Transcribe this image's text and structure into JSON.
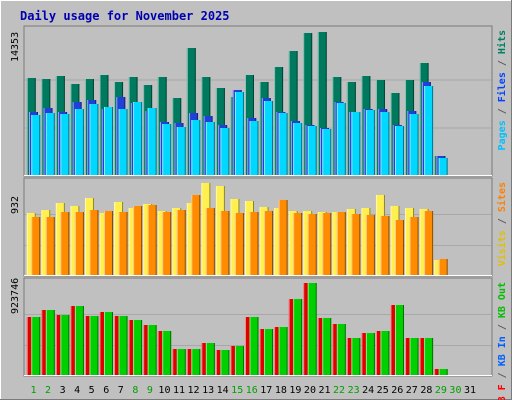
{
  "chart_data": {
    "type": "bar",
    "title": "Daily usage for November 2025",
    "categories": [
      "1",
      "2",
      "3",
      "4",
      "5",
      "6",
      "7",
      "8",
      "9",
      "10",
      "11",
      "12",
      "13",
      "14",
      "15",
      "16",
      "17",
      "18",
      "19",
      "20",
      "21",
      "22",
      "23",
      "24",
      "25",
      "26",
      "27",
      "28",
      "29",
      "30",
      "31"
    ],
    "weekend_days": [
      "1",
      "2",
      "8",
      "9",
      "15",
      "16",
      "22",
      "23",
      "29",
      "30"
    ],
    "panels": [
      {
        "id": "hits",
        "ymax_label": "14353",
        "ymax": 14353,
        "ylabel_parts": [
          {
            "text": "Pages",
            "color": "#00c0ff"
          },
          {
            "text": " / ",
            "color": "#606060"
          },
          {
            "text": "Files",
            "color": "#0044ff"
          },
          {
            "text": " / ",
            "color": "#606060"
          },
          {
            "text": "Hits",
            "color": "#008060"
          }
        ],
        "series": [
          {
            "name": "Hits",
            "color": "#007a5e",
            "values": [
              9700,
              9600,
              9900,
              9100,
              9600,
              10000,
              9300,
              9800,
              9000,
              9800,
              7700,
              12700,
              9800,
              8700,
              7800,
              10000,
              9300,
              10800,
              12400,
              14200,
              14300,
              9800,
              9300,
              9900,
              9500,
              8200,
              9500,
              11200,
              1900,
              0,
              0
            ]
          },
          {
            "name": "Files",
            "color": "#2040d8",
            "values": [
              6300,
              6700,
              6300,
              7300,
              7500,
              6600,
              7800,
              7200,
              6400,
              5300,
              5200,
              6200,
              5900,
              5000,
              8500,
              5700,
              7700,
              6300,
              5400,
              5000,
              4700,
              7300,
              6300,
              6600,
              6600,
              5000,
              6400,
              9300,
              1900,
              0,
              0
            ]
          },
          {
            "name": "Pages",
            "color": "#00d8ff",
            "values": [
              6000,
              6200,
              6100,
              6600,
              7100,
              6800,
              6600,
              7300,
              6700,
              5100,
              4800,
              5500,
              5300,
              4700,
              8300,
              5400,
              7400,
              6200,
              5200,
              4900,
              4600,
              7200,
              6300,
              6500,
              6300,
              4900,
              6100,
              8900,
              1700,
              0,
              0
            ]
          }
        ]
      },
      {
        "id": "visits",
        "ymax_label": "932",
        "ymax": 932,
        "ylabel_parts": [
          {
            "text": "Visits",
            "color": "#e0c000"
          },
          {
            "text": " / ",
            "color": "#606060"
          },
          {
            "text": "Sites",
            "color": "#ff8000"
          }
        ],
        "series": [
          {
            "name": "Visits",
            "color": "#fff050",
            "values": [
              631,
              658,
              727,
              695,
              780,
              629,
              735,
              678,
              721,
              647,
              680,
              734,
              928,
              900,
              768,
              746,
              692,
              674,
              651,
              652,
              642,
              640,
              664,
              675,
              807,
              702,
              678,
              666,
              151,
              0,
              0
            ]
          },
          {
            "name": "Sites",
            "color": "#ff8c00",
            "values": [
              584,
              588,
              634,
              635,
              657,
              650,
              636,
              697,
              709,
              640,
              655,
              806,
              679,
              645,
              629,
              638,
              646,
              756,
              631,
              620,
              627,
              636,
              613,
              609,
              595,
              560,
              588,
              650,
              159,
              0,
              0
            ]
          }
        ]
      },
      {
        "id": "kbytes",
        "ymax_label": "923746",
        "ymax": 923746,
        "ylabel_parts": [
          {
            "text": "KB F",
            "color": "#ff0000"
          },
          {
            "text": " / ",
            "color": "#606060"
          },
          {
            "text": "KB In",
            "color": "#0060ff"
          },
          {
            "text": " / ",
            "color": "#606060"
          },
          {
            "text": "KB Out",
            "color": "#00c000"
          }
        ],
        "series": [
          {
            "name": "KB F",
            "color": "#e00000",
            "values": [
              578000,
              649000,
              599000,
              697000,
              590000,
              629000,
              590000,
              551000,
              501000,
              444000,
              257000,
              258000,
              326000,
              255000,
              290000,
              578000,
              458000,
              478000,
              759000,
              923000,
              569000,
              513000,
              371000,
              420000,
              441000,
              707000,
              368000,
              368000,
              63000,
              0,
              0
            ]
          },
          {
            "name": "KB Out",
            "color": "#00d000",
            "values": [
              578000,
              649000,
              599000,
              697000,
              590000,
              629000,
              590000,
              551000,
              501000,
              444000,
              257000,
              258000,
              326000,
              255000,
              290000,
              578000,
              458000,
              478000,
              759000,
              923000,
              569000,
              513000,
              371000,
              420000,
              441000,
              707000,
              368000,
              368000,
              63000,
              0,
              0
            ]
          }
        ]
      }
    ],
    "grid": true
  }
}
